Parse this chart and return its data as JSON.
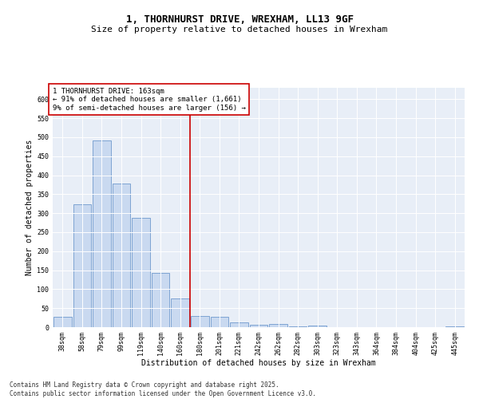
{
  "title_line1": "1, THORNHURST DRIVE, WREXHAM, LL13 9GF",
  "title_line2": "Size of property relative to detached houses in Wrexham",
  "xlabel": "Distribution of detached houses by size in Wrexham",
  "ylabel": "Number of detached properties",
  "categories": [
    "38sqm",
    "58sqm",
    "79sqm",
    "99sqm",
    "119sqm",
    "140sqm",
    "160sqm",
    "180sqm",
    "201sqm",
    "221sqm",
    "242sqm",
    "262sqm",
    "282sqm",
    "303sqm",
    "323sqm",
    "343sqm",
    "364sqm",
    "384sqm",
    "404sqm",
    "425sqm",
    "445sqm"
  ],
  "values": [
    28,
    323,
    492,
    378,
    288,
    143,
    76,
    30,
    27,
    13,
    6,
    8,
    2,
    4,
    1,
    1,
    0,
    0,
    0,
    0,
    3
  ],
  "bar_color": "#c9d9f0",
  "bar_edge_color": "#5a8ac6",
  "vline_x": 6.5,
  "vline_color": "#cc0000",
  "annotation_text": "1 THORNHURST DRIVE: 163sqm\n← 91% of detached houses are smaller (1,661)\n9% of semi-detached houses are larger (156) →",
  "annotation_box_color": "#ffffff",
  "annotation_box_edge_color": "#cc0000",
  "ylim": [
    0,
    630
  ],
  "yticks": [
    0,
    50,
    100,
    150,
    200,
    250,
    300,
    350,
    400,
    450,
    500,
    550,
    600
  ],
  "bg_color": "#e8eef7",
  "footer_text": "Contains HM Land Registry data © Crown copyright and database right 2025.\nContains public sector information licensed under the Open Government Licence v3.0.",
  "title_fontsize": 9,
  "subtitle_fontsize": 8,
  "axis_label_fontsize": 7,
  "tick_fontsize": 6,
  "annotation_fontsize": 6.5,
  "footer_fontsize": 5.5,
  "ylabel_fontsize": 7
}
